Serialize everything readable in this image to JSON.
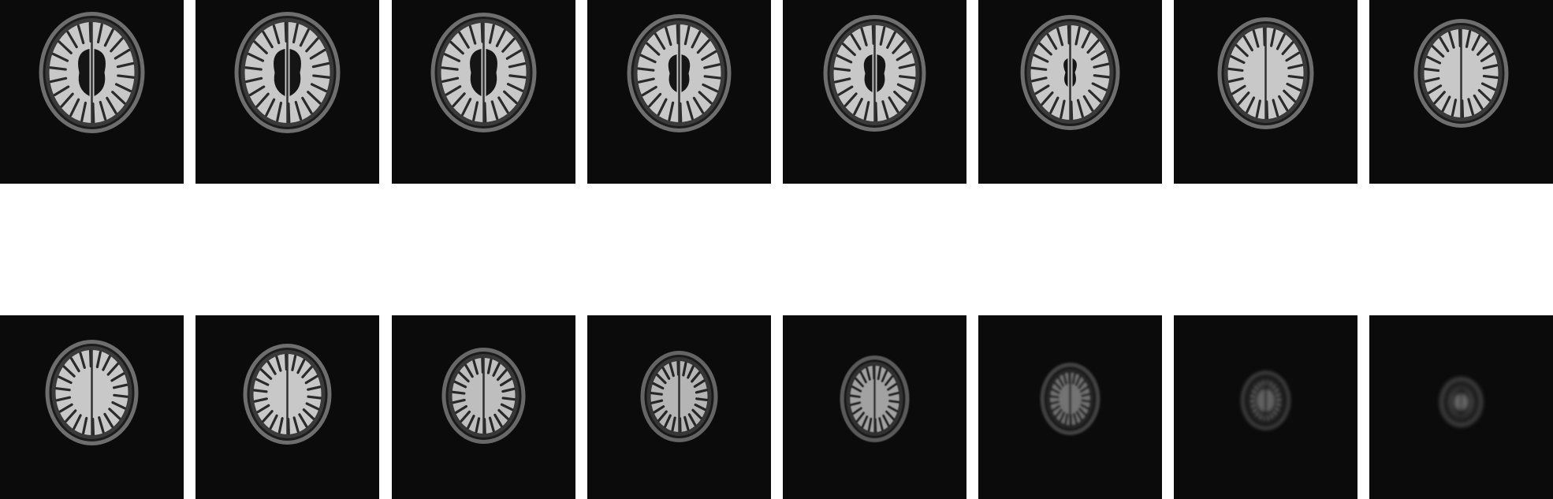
{
  "image": {
    "rows": [
      {
        "name": "top-row",
        "slices": [
          {
            "level": 1,
            "ventricles": "wide"
          },
          {
            "level": 2,
            "ventricles": "wide"
          },
          {
            "level": 3,
            "ventricles": "wide"
          },
          {
            "level": 4,
            "ventricles": "medium"
          },
          {
            "level": 5,
            "ventricles": "medium"
          },
          {
            "level": 6,
            "ventricles": "small"
          },
          {
            "level": 7,
            "ventricles": "none"
          },
          {
            "level": 8,
            "ventricles": "none"
          }
        ]
      },
      {
        "name": "bottom-row",
        "slices": [
          {
            "level": 9,
            "ventricles": "none"
          },
          {
            "level": 10,
            "ventricles": "none"
          },
          {
            "level": 11,
            "ventricles": "none"
          },
          {
            "level": 12,
            "ventricles": "none"
          },
          {
            "level": 13,
            "ventricles": "none"
          },
          {
            "level": 14,
            "ventricles": "none"
          },
          {
            "level": 15,
            "ventricles": "none"
          },
          {
            "level": 16,
            "ventricles": "none"
          }
        ]
      }
    ],
    "colors": {
      "page_background": "#ffffff",
      "slice_background": "#0b0b0b",
      "tissue": "#c8c8c8",
      "skull": "#6e6e6e",
      "csf": "#151515"
    }
  }
}
